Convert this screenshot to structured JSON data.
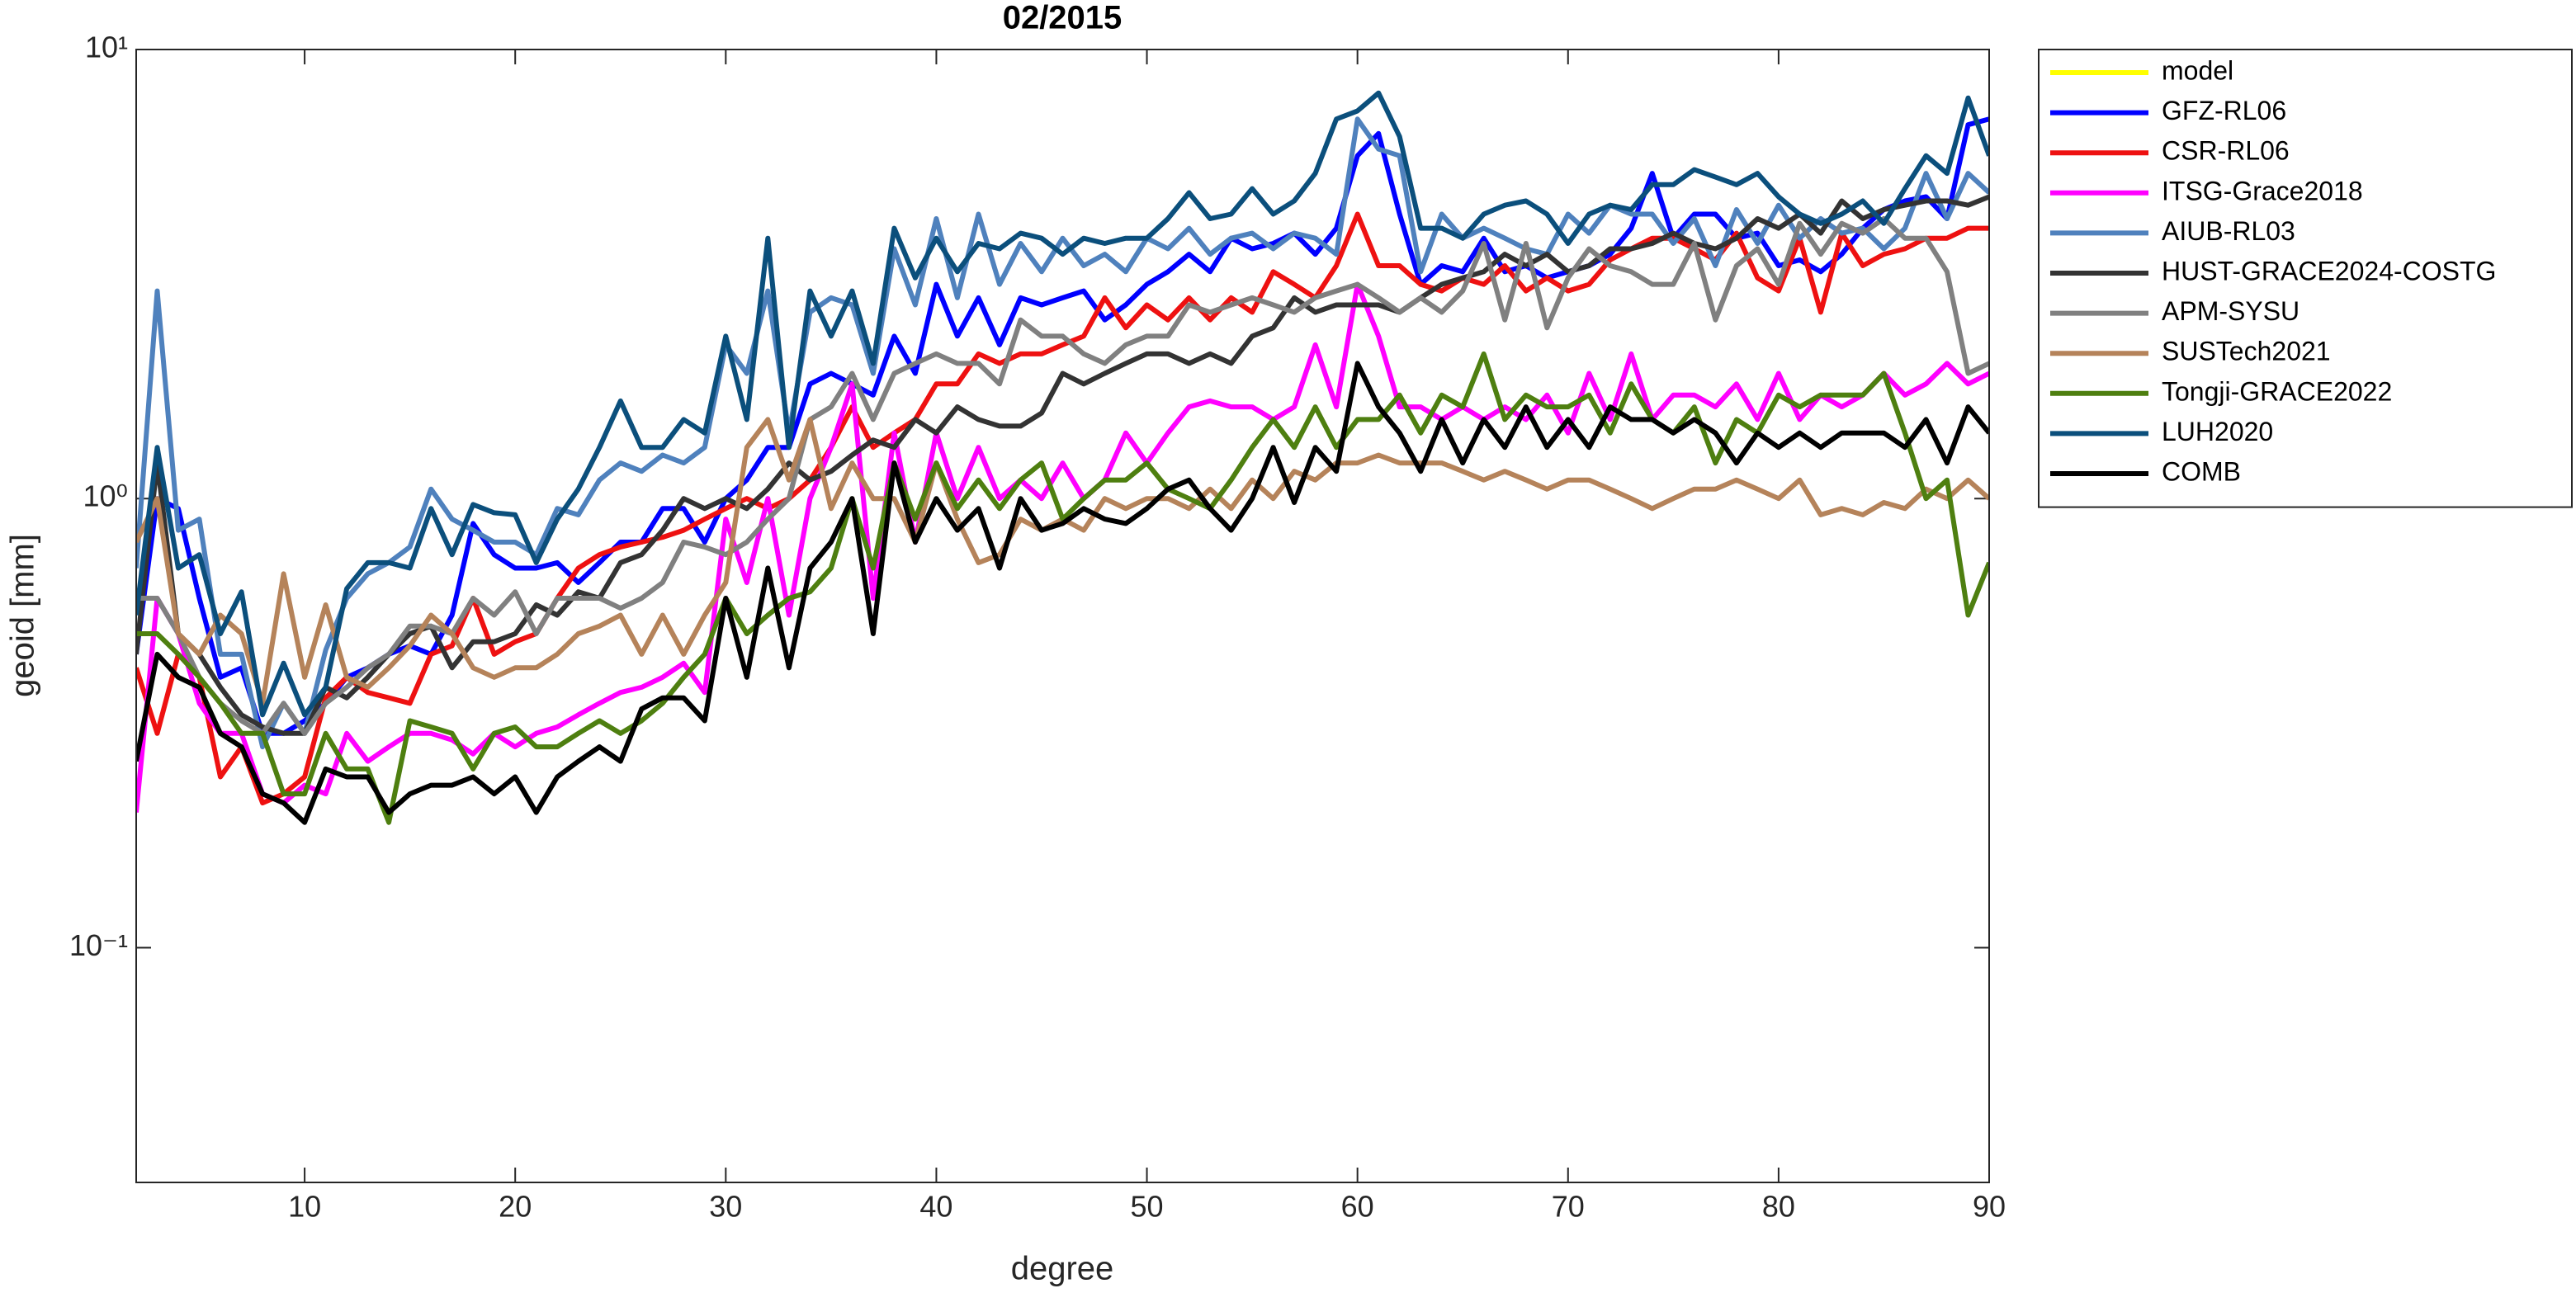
{
  "chart_data": {
    "type": "line",
    "title": "02/2015",
    "x_label": "degree",
    "y_label": "geoid [mm]",
    "ylog": true,
    "grid": false,
    "xlim": [
      2,
      90
    ],
    "xticks": [
      10,
      20,
      30,
      40,
      50,
      60,
      70,
      80,
      90
    ],
    "ylim": [
      0.03,
      10
    ],
    "yticks": [
      {
        "value": 0.1,
        "label": "10⁻¹"
      },
      {
        "value": 1,
        "label": "10⁰"
      },
      {
        "value": 10,
        "label": "10¹"
      }
    ],
    "x": [
      2,
      3,
      4,
      5,
      6,
      7,
      8,
      9,
      10,
      11,
      12,
      13,
      14,
      15,
      16,
      17,
      18,
      19,
      20,
      21,
      22,
      23,
      24,
      25,
      26,
      27,
      28,
      29,
      30,
      31,
      32,
      33,
      34,
      35,
      36,
      37,
      38,
      39,
      40,
      41,
      42,
      43,
      44,
      45,
      46,
      47,
      48,
      49,
      50,
      51,
      52,
      53,
      54,
      55,
      56,
      57,
      58,
      59,
      60,
      61,
      62,
      63,
      64,
      65,
      66,
      67,
      68,
      69,
      70,
      71,
      72,
      73,
      74,
      75,
      76,
      77,
      78,
      79,
      80,
      81,
      82,
      83,
      84,
      85,
      86,
      87,
      88,
      89,
      90
    ],
    "series": [
      {
        "name": "model",
        "color": "#ffff00",
        "values": [
          null,
          null,
          null,
          null,
          null,
          null,
          null,
          null,
          null,
          null,
          null,
          null,
          null,
          null,
          null,
          null,
          null,
          null,
          null,
          null,
          null,
          null,
          null,
          null,
          null,
          null,
          null,
          null,
          null,
          null,
          null,
          null,
          null,
          null,
          null,
          null,
          null,
          null,
          null,
          null,
          null,
          null,
          null,
          null,
          null,
          null,
          null,
          null,
          null,
          null,
          null,
          null,
          null,
          null,
          null,
          null,
          null,
          null,
          null,
          null,
          null,
          null,
          null,
          null,
          null,
          null,
          null,
          null,
          null,
          null,
          null,
          null,
          null,
          null,
          null,
          null,
          null,
          null,
          null,
          null,
          null,
          null,
          null,
          null,
          null,
          null,
          null,
          null,
          null
        ]
      },
      {
        "name": "GFZ-RL06",
        "color": "#0000ff",
        "values": [
          0.45,
          1.0,
          0.95,
          0.6,
          0.4,
          0.42,
          0.3,
          0.3,
          0.32,
          0.35,
          0.4,
          0.42,
          0.45,
          0.47,
          0.45,
          0.55,
          0.88,
          0.75,
          0.7,
          0.7,
          0.72,
          0.65,
          0.72,
          0.8,
          0.8,
          0.95,
          0.95,
          0.8,
          1.0,
          1.1,
          1.3,
          1.3,
          1.8,
          1.9,
          1.8,
          1.7,
          2.3,
          1.9,
          3.0,
          2.3,
          2.8,
          2.2,
          2.8,
          2.7,
          2.8,
          2.9,
          2.5,
          2.7,
          3.0,
          3.2,
          3.5,
          3.2,
          3.8,
          3.6,
          3.7,
          3.9,
          3.5,
          4.0,
          5.8,
          6.5,
          4.3,
          3.0,
          3.3,
          3.2,
          3.8,
          3.2,
          3.3,
          3.1,
          3.2,
          3.3,
          3.5,
          4.0,
          5.3,
          3.8,
          4.3,
          4.3,
          3.8,
          3.9,
          3.3,
          3.4,
          3.2,
          3.5,
          4.0,
          4.4,
          4.6,
          4.7,
          4.2,
          6.8,
          7.0
        ]
      },
      {
        "name": "CSR-RL06",
        "color": "#ee1111",
        "values": [
          0.42,
          0.3,
          0.45,
          0.4,
          0.24,
          0.28,
          0.21,
          0.22,
          0.24,
          0.36,
          0.4,
          0.37,
          0.36,
          0.35,
          0.45,
          0.47,
          0.6,
          0.45,
          0.48,
          0.5,
          0.6,
          0.7,
          0.75,
          0.78,
          0.8,
          0.82,
          0.85,
          0.9,
          0.95,
          1.0,
          0.95,
          1.0,
          1.1,
          1.3,
          1.6,
          1.3,
          1.4,
          1.5,
          1.8,
          1.8,
          2.1,
          2.0,
          2.1,
          2.1,
          2.2,
          2.3,
          2.8,
          2.4,
          2.7,
          2.5,
          2.8,
          2.5,
          2.8,
          2.6,
          3.2,
          3.0,
          2.8,
          3.3,
          4.3,
          3.3,
          3.3,
          3.0,
          2.9,
          3.1,
          3.0,
          3.3,
          2.9,
          3.1,
          2.9,
          3.0,
          3.4,
          3.6,
          3.8,
          3.8,
          3.6,
          3.4,
          3.9,
          3.1,
          2.9,
          3.8,
          2.6,
          3.9,
          3.3,
          3.5,
          3.6,
          3.8,
          3.8,
          4.0,
          4.0
        ]
      },
      {
        "name": "ITSG-Grace2018",
        "color": "#ff00ff",
        "values": [
          0.2,
          0.6,
          0.5,
          0.35,
          0.3,
          0.3,
          0.22,
          0.21,
          0.23,
          0.22,
          0.3,
          0.26,
          0.28,
          0.3,
          0.3,
          0.29,
          0.27,
          0.3,
          0.28,
          0.3,
          0.31,
          0.33,
          0.35,
          0.37,
          0.38,
          0.4,
          0.43,
          0.37,
          0.9,
          0.65,
          1.0,
          0.55,
          1.0,
          1.3,
          1.8,
          0.6,
          1.4,
          0.8,
          1.4,
          1.0,
          1.3,
          1.0,
          1.1,
          1.0,
          1.2,
          1.0,
          1.1,
          1.4,
          1.2,
          1.4,
          1.6,
          1.65,
          1.6,
          1.6,
          1.5,
          1.6,
          2.2,
          1.6,
          3.0,
          2.3,
          1.6,
          1.6,
          1.5,
          1.6,
          1.5,
          1.6,
          1.5,
          1.7,
          1.4,
          1.9,
          1.5,
          2.1,
          1.5,
          1.7,
          1.7,
          1.6,
          1.8,
          1.5,
          1.9,
          1.5,
          1.7,
          1.6,
          1.7,
          1.9,
          1.7,
          1.8,
          2.0,
          1.8,
          1.9
        ]
      },
      {
        "name": "AIUB-RL03",
        "color": "#4f81bd",
        "values": [
          0.7,
          2.9,
          0.85,
          0.9,
          0.45,
          0.45,
          0.28,
          0.35,
          0.3,
          0.46,
          0.6,
          0.68,
          0.72,
          0.78,
          1.05,
          0.9,
          0.85,
          0.8,
          0.8,
          0.75,
          0.95,
          0.92,
          1.1,
          1.2,
          1.15,
          1.25,
          1.2,
          1.3,
          2.2,
          1.9,
          2.9,
          1.4,
          2.6,
          2.8,
          2.7,
          1.9,
          3.6,
          2.7,
          4.2,
          2.8,
          4.3,
          3.0,
          3.7,
          3.2,
          3.8,
          3.3,
          3.5,
          3.2,
          3.8,
          3.6,
          4.0,
          3.5,
          3.8,
          3.9,
          3.6,
          3.9,
          3.8,
          3.5,
          7.0,
          6.0,
          5.8,
          3.2,
          4.3,
          3.8,
          4.0,
          3.8,
          3.6,
          3.5,
          4.3,
          3.9,
          4.5,
          4.3,
          4.3,
          3.7,
          4.2,
          3.3,
          4.4,
          3.7,
          4.5,
          3.8,
          4.2,
          3.9,
          4.0,
          3.6,
          4.0,
          5.3,
          4.2,
          5.3,
          4.8
        ]
      },
      {
        "name": "HUST-GRACE2024-COSTG",
        "color": "#333333",
        "values": [
          0.45,
          1.2,
          0.5,
          0.45,
          0.38,
          0.33,
          0.31,
          0.3,
          0.3,
          0.38,
          0.36,
          0.4,
          0.45,
          0.5,
          0.52,
          0.42,
          0.48,
          0.48,
          0.5,
          0.58,
          0.55,
          0.62,
          0.6,
          0.72,
          0.75,
          0.85,
          1.0,
          0.95,
          1.0,
          0.95,
          1.05,
          1.2,
          1.1,
          1.15,
          1.25,
          1.35,
          1.3,
          1.5,
          1.4,
          1.6,
          1.5,
          1.45,
          1.45,
          1.55,
          1.9,
          1.8,
          1.9,
          2.0,
          2.1,
          2.1,
          2.0,
          2.1,
          2.0,
          2.3,
          2.4,
          2.8,
          2.6,
          2.7,
          2.7,
          2.7,
          2.6,
          2.8,
          3.0,
          3.1,
          3.2,
          3.5,
          3.3,
          3.5,
          3.2,
          3.3,
          3.6,
          3.6,
          3.7,
          3.9,
          3.7,
          3.6,
          3.8,
          4.2,
          4.0,
          4.3,
          3.9,
          4.6,
          4.2,
          4.4,
          4.5,
          4.6,
          4.6,
          4.5,
          4.7
        ]
      },
      {
        "name": "APM-SYSU",
        "color": "#808080",
        "values": [
          0.6,
          0.6,
          0.5,
          0.4,
          0.35,
          0.32,
          0.3,
          0.35,
          0.3,
          0.35,
          0.38,
          0.42,
          0.45,
          0.52,
          0.52,
          0.5,
          0.6,
          0.55,
          0.62,
          0.5,
          0.6,
          0.6,
          0.6,
          0.57,
          0.6,
          0.65,
          0.8,
          0.78,
          0.75,
          0.8,
          0.9,
          1.0,
          1.5,
          1.6,
          1.9,
          1.5,
          1.9,
          2.0,
          2.1,
          2.0,
          2.0,
          1.8,
          2.5,
          2.3,
          2.3,
          2.1,
          2.0,
          2.2,
          2.3,
          2.3,
          2.7,
          2.6,
          2.7,
          2.8,
          2.7,
          2.6,
          2.8,
          2.9,
          3.0,
          2.8,
          2.6,
          2.8,
          2.6,
          2.9,
          3.7,
          2.5,
          3.7,
          2.4,
          3.1,
          3.6,
          3.3,
          3.2,
          3.0,
          3.0,
          3.7,
          2.5,
          3.3,
          3.6,
          3.0,
          4.1,
          3.5,
          4.1,
          3.9,
          4.2,
          3.8,
          3.8,
          3.2,
          1.9,
          2.0
        ]
      },
      {
        "name": "SUSTech2021",
        "color": "#b5835a",
        "values": [
          0.8,
          1.0,
          0.5,
          0.45,
          0.55,
          0.5,
          0.35,
          0.68,
          0.4,
          0.58,
          0.4,
          0.38,
          0.42,
          0.47,
          0.55,
          0.5,
          0.42,
          0.4,
          0.42,
          0.42,
          0.45,
          0.5,
          0.52,
          0.55,
          0.45,
          0.55,
          0.45,
          0.55,
          0.65,
          1.3,
          1.5,
          1.1,
          1.5,
          0.95,
          1.2,
          1.0,
          1.0,
          0.8,
          1.2,
          0.9,
          0.72,
          0.75,
          0.9,
          0.85,
          0.9,
          0.85,
          1.0,
          0.95,
          1.0,
          1.0,
          0.95,
          1.05,
          0.95,
          1.1,
          1.0,
          1.15,
          1.1,
          1.2,
          1.2,
          1.25,
          1.2,
          1.2,
          1.2,
          1.15,
          1.1,
          1.15,
          1.1,
          1.05,
          1.1,
          1.1,
          1.05,
          1.0,
          0.95,
          1.0,
          1.05,
          1.05,
          1.1,
          1.05,
          1.0,
          1.1,
          0.92,
          0.95,
          0.92,
          0.98,
          0.95,
          1.05,
          1.0,
          1.1,
          1.0
        ]
      },
      {
        "name": "Tongji-GRACE2022",
        "color": "#4e7f10",
        "values": [
          0.5,
          0.5,
          0.45,
          0.4,
          0.35,
          0.3,
          0.3,
          0.22,
          0.22,
          0.3,
          0.25,
          0.25,
          0.19,
          0.32,
          0.31,
          0.3,
          0.25,
          0.3,
          0.31,
          0.28,
          0.28,
          0.3,
          0.32,
          0.3,
          0.32,
          0.35,
          0.4,
          0.45,
          0.6,
          0.5,
          0.55,
          0.6,
          0.62,
          0.7,
          1.0,
          0.7,
          1.2,
          0.9,
          1.2,
          0.95,
          1.1,
          0.95,
          1.1,
          1.2,
          0.9,
          1.0,
          1.1,
          1.1,
          1.2,
          1.05,
          1.0,
          0.95,
          1.1,
          1.3,
          1.5,
          1.3,
          1.6,
          1.3,
          1.5,
          1.5,
          1.7,
          1.4,
          1.7,
          1.6,
          2.1,
          1.5,
          1.7,
          1.6,
          1.6,
          1.7,
          1.4,
          1.8,
          1.5,
          1.4,
          1.6,
          1.2,
          1.5,
          1.4,
          1.7,
          1.6,
          1.7,
          1.7,
          1.7,
          1.9,
          1.4,
          1.0,
          1.1,
          0.55,
          0.72
        ]
      },
      {
        "name": "LUH2020",
        "color": "#0b4f7c",
        "values": [
          0.55,
          1.3,
          0.7,
          0.75,
          0.5,
          0.62,
          0.33,
          0.43,
          0.33,
          0.38,
          0.63,
          0.72,
          0.72,
          0.7,
          0.95,
          0.75,
          0.97,
          0.93,
          0.92,
          0.72,
          0.9,
          1.05,
          1.3,
          1.65,
          1.3,
          1.3,
          1.5,
          1.4,
          2.3,
          1.5,
          3.8,
          1.3,
          2.9,
          2.3,
          2.9,
          2.0,
          4.0,
          3.1,
          3.8,
          3.2,
          3.7,
          3.6,
          3.9,
          3.8,
          3.5,
          3.8,
          3.7,
          3.8,
          3.8,
          4.2,
          4.8,
          4.2,
          4.3,
          4.9,
          4.3,
          4.6,
          5.3,
          7.0,
          7.3,
          8.0,
          6.4,
          4.0,
          4.0,
          3.8,
          4.3,
          4.5,
          4.6,
          4.3,
          3.7,
          4.3,
          4.5,
          4.4,
          5.0,
          5.0,
          5.4,
          5.2,
          5.0,
          5.3,
          4.7,
          4.3,
          4.1,
          4.3,
          4.6,
          4.1,
          4.9,
          5.8,
          5.3,
          7.8,
          5.8
        ]
      },
      {
        "name": "COMB",
        "color": "#000000",
        "values": [
          0.26,
          0.45,
          0.4,
          0.38,
          0.3,
          0.28,
          0.22,
          0.21,
          0.19,
          0.25,
          0.24,
          0.24,
          0.2,
          0.22,
          0.23,
          0.23,
          0.24,
          0.22,
          0.24,
          0.2,
          0.24,
          0.26,
          0.28,
          0.26,
          0.34,
          0.36,
          0.36,
          0.32,
          0.6,
          0.4,
          0.7,
          0.42,
          0.7,
          0.8,
          1.0,
          0.5,
          1.2,
          0.8,
          1.0,
          0.85,
          0.95,
          0.7,
          1.0,
          0.85,
          0.88,
          0.95,
          0.9,
          0.88,
          0.95,
          1.05,
          1.1,
          0.95,
          0.85,
          1.0,
          1.3,
          0.98,
          1.3,
          1.15,
          2.0,
          1.6,
          1.4,
          1.15,
          1.5,
          1.2,
          1.5,
          1.3,
          1.6,
          1.3,
          1.5,
          1.3,
          1.6,
          1.5,
          1.5,
          1.4,
          1.5,
          1.4,
          1.2,
          1.4,
          1.3,
          1.4,
          1.3,
          1.4,
          1.4,
          1.4,
          1.3,
          1.5,
          1.2,
          1.6,
          1.4
        ]
      }
    ]
  }
}
